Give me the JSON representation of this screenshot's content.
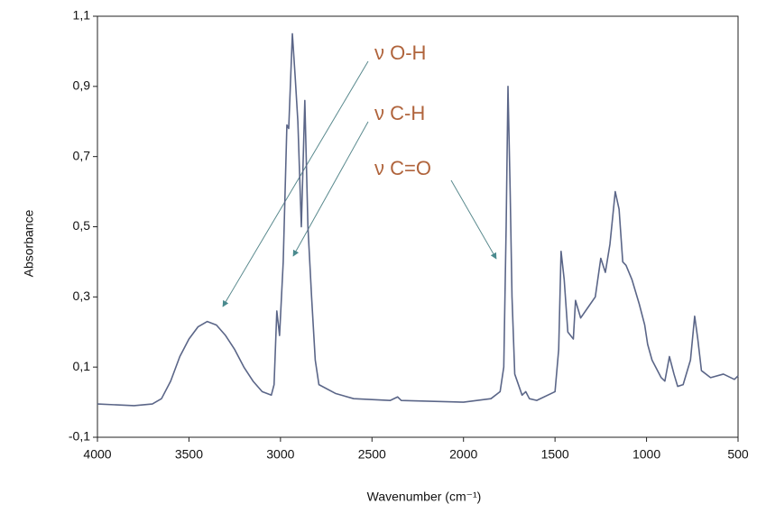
{
  "chart_data": {
    "type": "line",
    "xlabel": "Wavenumber (cm⁻¹)",
    "ylabel": "Absorbance",
    "annotations": [
      "ν O-H",
      "ν C-H",
      "ν C=O"
    ],
    "xlim": [
      4000,
      500
    ],
    "xticks": [
      4000,
      3500,
      3000,
      2500,
      2000,
      1500,
      1000,
      500
    ],
    "ylim": [
      -0.1,
      1.1
    ],
    "yticks": [
      {
        "value": -0.1,
        "label": "-0,1"
      },
      {
        "value": 0.1,
        "label": "0,1"
      },
      {
        "value": 0.3,
        "label": "0,3"
      },
      {
        "value": 0.5,
        "label": "0,5"
      },
      {
        "value": 0.7,
        "label": "0,7"
      },
      {
        "value": 0.9,
        "label": "0,9"
      },
      {
        "value": 1.1,
        "label": "1,1"
      }
    ],
    "grid": false,
    "color": "#5b6688",
    "x": [
      4000,
      3800,
      3700,
      3650,
      3600,
      3550,
      3500,
      3450,
      3400,
      3350,
      3300,
      3250,
      3200,
      3150,
      3100,
      3050,
      3035,
      3020,
      3005,
      2985,
      2965,
      2955,
      2935,
      2920,
      2905,
      2886,
      2867,
      2850,
      2830,
      2810,
      2790,
      2700,
      2600,
      2400,
      2360,
      2340,
      2000,
      1850,
      1800,
      1780,
      1767,
      1757,
      1745,
      1735,
      1720,
      1680,
      1660,
      1640,
      1600,
      1500,
      1480,
      1467,
      1450,
      1430,
      1400,
      1388,
      1360,
      1320,
      1280,
      1250,
      1225,
      1200,
      1171,
      1150,
      1130,
      1112,
      1080,
      1040,
      1010,
      994,
      970,
      920,
      900,
      875,
      850,
      830,
      800,
      760,
      737,
      720,
      700,
      650,
      580,
      520,
      500
    ],
    "y": [
      -0.005,
      -0.01,
      -0.005,
      0.01,
      0.06,
      0.13,
      0.18,
      0.215,
      0.23,
      0.22,
      0.19,
      0.15,
      0.1,
      0.06,
      0.03,
      0.02,
      0.05,
      0.26,
      0.19,
      0.4,
      0.79,
      0.78,
      1.05,
      0.93,
      0.8,
      0.5,
      0.86,
      0.5,
      0.3,
      0.12,
      0.05,
      0.025,
      0.01,
      0.005,
      0.015,
      0.005,
      0,
      0.01,
      0.03,
      0.1,
      0.5,
      0.9,
      0.6,
      0.3,
      0.08,
      0.02,
      0.03,
      0.01,
      0.005,
      0.03,
      0.15,
      0.43,
      0.35,
      0.2,
      0.18,
      0.29,
      0.24,
      0.27,
      0.3,
      0.41,
      0.37,
      0.45,
      0.6,
      0.55,
      0.4,
      0.39,
      0.35,
      0.28,
      0.22,
      0.165,
      0.12,
      0.07,
      0.06,
      0.13,
      0.08,
      0.045,
      0.05,
      0.12,
      0.245,
      0.18,
      0.09,
      0.07,
      0.08,
      0.065,
      0.075
    ]
  }
}
